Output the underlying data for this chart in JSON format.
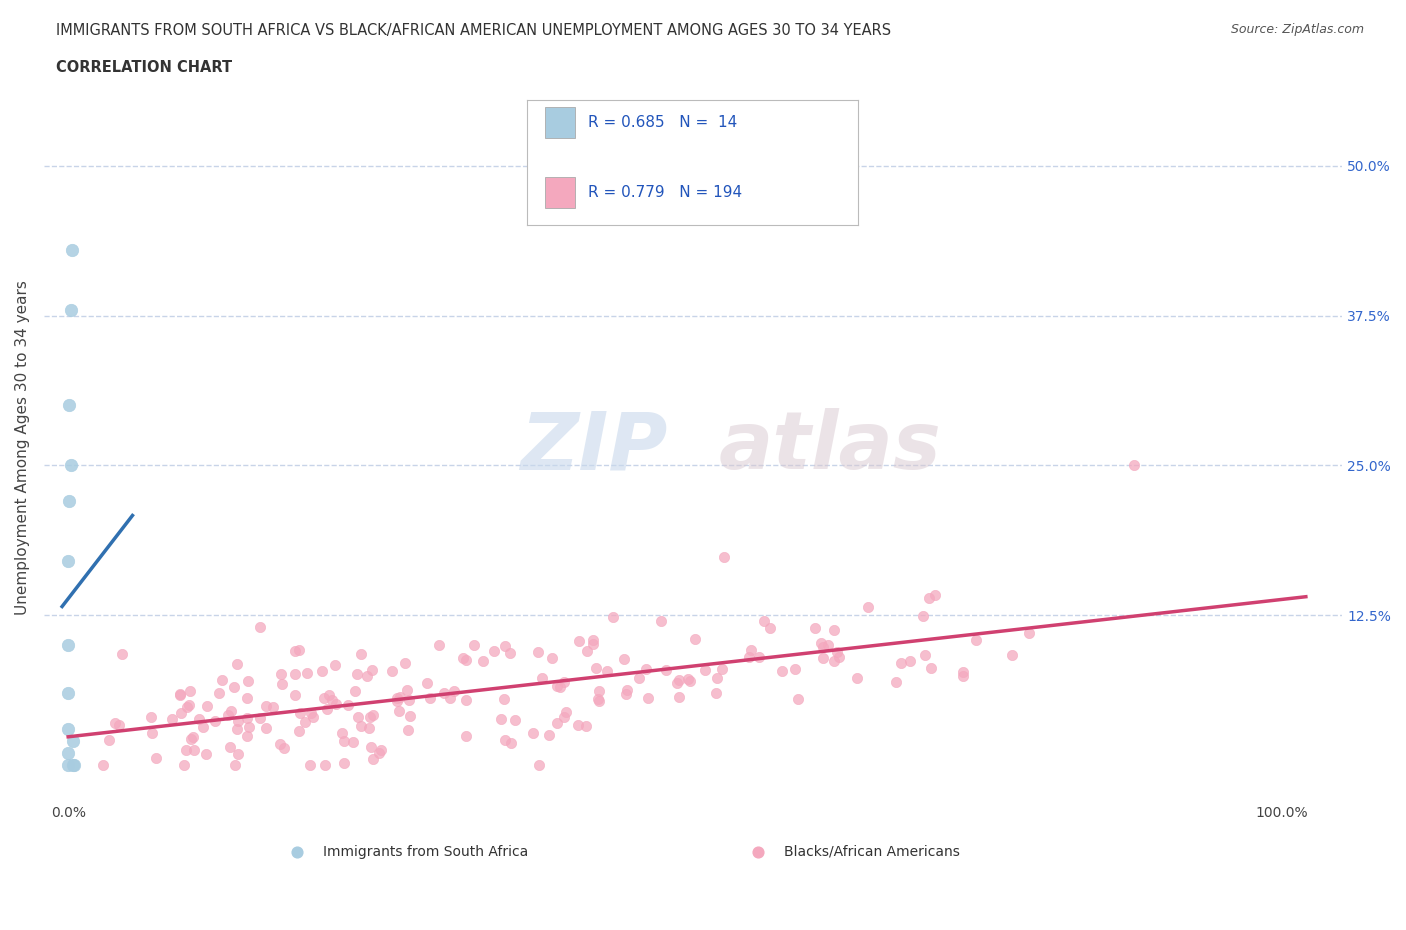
{
  "title_line1": "IMMIGRANTS FROM SOUTH AFRICA VS BLACK/AFRICAN AMERICAN UNEMPLOYMENT AMONG AGES 30 TO 34 YEARS",
  "title_line2": "CORRELATION CHART",
  "source_text": "Source: ZipAtlas.com",
  "ylabel": "Unemployment Among Ages 30 to 34 years",
  "watermark_zip": "ZIP",
  "watermark_atlas": "atlas",
  "legend_r1": "R = 0.685",
  "legend_n1": "N =  14",
  "legend_r2": "R = 0.779",
  "legend_n2": "N = 194",
  "ytick_values": [
    0.125,
    0.25,
    0.375,
    0.5
  ],
  "ytick_labels": [
    "12.5%",
    "25.0%",
    "37.5%",
    "50.0%"
  ],
  "color_blue": "#a8cce0",
  "color_pink": "#f4a8be",
  "color_blue_line": "#3070b0",
  "color_pink_line": "#d04070",
  "background_color": "#ffffff",
  "grid_color": "#c8d4e8",
  "blue_scatter_x": [
    0.0,
    0.0,
    0.0,
    0.0,
    0.0,
    0.0,
    0.001,
    0.001,
    0.002,
    0.002,
    0.003,
    0.004,
    0.004,
    0.005
  ],
  "blue_scatter_y": [
    0.0,
    0.01,
    0.03,
    0.06,
    0.1,
    0.17,
    0.22,
    0.3,
    0.38,
    0.25,
    0.43,
    0.0,
    0.02,
    0.0
  ]
}
